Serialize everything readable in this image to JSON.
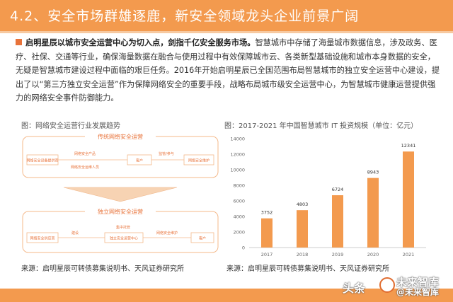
{
  "header": {
    "title": "4.2、安全市场群雄逐鹿，新安全领域龙头企业前景广阔"
  },
  "intro": {
    "bold": "启明星辰以城市安全运营中心为切入点，剑指千亿安全服务市场。",
    "body": "智慧城市中存储了海量城市数据信息，涉及政务、医疗、社保、交通等行业，确保海量数据在融合与使用过程中有效保障城市云、各类新型基础设施和城市本身数据的安全，无疑是智慧城市建设过程中面临的艰巨任务。2016年开始启明星辰已全国范围布局智慧城市的独立安全运营中心建设，提出了以“第三方独立安全运营”作为保障网络安全的重要手段，战略布局城市级安全运营中心，为智慧城市健康运营提供强力的网络安全事件防御能力。"
  },
  "figure_left": {
    "caption": "图：网络安全运营行业发展趋势",
    "source": "来源：启明星辰可转债募集说明书、天风证券研究所",
    "top_section_label": "传统网络安全运营",
    "top_box_left": "网络安全设备提供商",
    "top_mid_1": "网络安全产品",
    "top_mid_2": "网络安全运维人员",
    "top_box_mid": "客户",
    "top_right_label": "监管/参与",
    "top_box_right": "网络安全维护",
    "bottom_section_label": "独立网络安全运营",
    "bottom_box_left": "网络安全供应商",
    "bottom_build": "建设",
    "bottom_center_top": "集中托管",
    "bottom_box_center": "独立安全运营中心",
    "bottom_center_right": "网络安全维护",
    "bottom_box_right": "客户"
  },
  "figure_right": {
    "caption": "图：2017-2021 年中国智慧城市 IT 投资规模（单位：亿元）",
    "source": "来源：启明星辰可转债募集说明书、天风证券研究所"
  },
  "chart_data": {
    "type": "bar",
    "categories": [
      "2017",
      "2018",
      "2019",
      "2020",
      "2021"
    ],
    "values": [
      3752,
      4803,
      6724,
      8943,
      12341
    ],
    "ylim": [
      0,
      14000
    ],
    "yticks": [
      0,
      2000,
      4000,
      6000,
      8000,
      10000,
      12000,
      14000
    ],
    "bar_color": "#f39a4e",
    "grid": false,
    "data_labels": true
  },
  "watermark": {
    "text1": "头条",
    "text2": "未来智库",
    "text3": "@未来智库"
  },
  "colors": {
    "accent": "#f39a4e",
    "bullet": "#e8733a",
    "diagram_line": "#f4b98a"
  }
}
